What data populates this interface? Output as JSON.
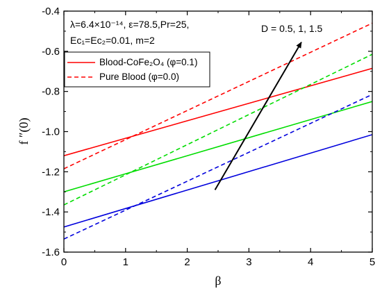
{
  "chart_data": {
    "type": "line",
    "xlabel": "β",
    "ylabel": "f ″(0)",
    "xlim": [
      0,
      5
    ],
    "ylim": [
      -1.6,
      -0.4
    ],
    "x_ticks": [
      "0",
      "1",
      "2",
      "3",
      "4",
      "5"
    ],
    "y_ticks": [
      "-1.6",
      "-1.4",
      "-1.2",
      "-1.0",
      "-0.8",
      "-0.6",
      "-0.4"
    ],
    "grid": false,
    "legend_position": "top-left",
    "annotations": {
      "params_line1": "λ=6.4×10⁻¹⁴, ε=78.5,Pr=25,",
      "params_line2": "Ec₁=Ec₂=0.01, m=2",
      "trend_label": "D = 0.5, 1, 1.5"
    },
    "trend_arrow": {
      "from": [
        2.45,
        -1.29
      ],
      "to": [
        3.85,
        -0.555
      ]
    },
    "legend": [
      {
        "label": "Blood-CoFe₂O₄ (φ=0.1)",
        "style": "solid",
        "color": "#ff0000"
      },
      {
        "label": "Pure Blood (φ=0.0)",
        "style": "dashed",
        "color": "#ff0000"
      }
    ],
    "series": [
      {
        "color": "#ff0000",
        "style": "solid",
        "x": [
          0,
          5
        ],
        "y": [
          -1.12,
          -0.685
        ]
      },
      {
        "color": "#ff0000",
        "style": "dashed",
        "x": [
          0,
          5
        ],
        "y": [
          -1.185,
          -0.46
        ]
      },
      {
        "color": "#00dd00",
        "style": "solid",
        "x": [
          0,
          5
        ],
        "y": [
          -1.3,
          -0.85
        ]
      },
      {
        "color": "#00dd00",
        "style": "dashed",
        "x": [
          0,
          5
        ],
        "y": [
          -1.365,
          -0.615
        ]
      },
      {
        "color": "#0000dd",
        "style": "solid",
        "x": [
          0,
          5
        ],
        "y": [
          -1.475,
          -1.015
        ]
      },
      {
        "color": "#0000dd",
        "style": "dashed",
        "x": [
          0,
          5
        ],
        "y": [
          -1.535,
          -0.815
        ]
      }
    ]
  }
}
